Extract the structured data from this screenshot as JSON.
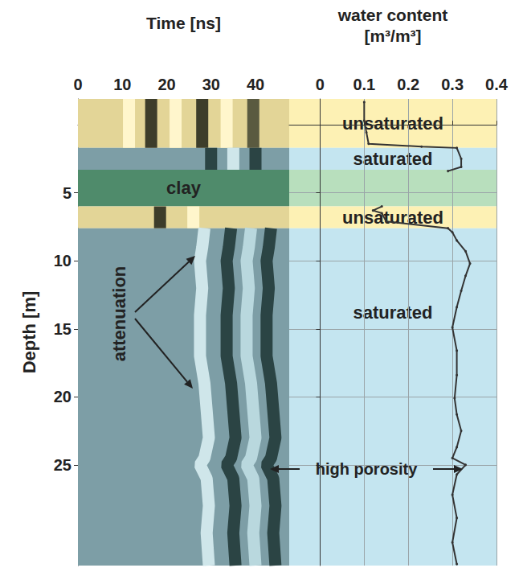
{
  "chart_data": [
    {
      "type": "line",
      "x_label": "Time [ns]",
      "y_label": "Depth [m]",
      "xlim": [
        0,
        47.6
      ],
      "xticks": [
        0,
        10,
        20,
        30,
        40
      ],
      "ylim": [
        -1.9,
        32.4
      ],
      "yticks": [
        5,
        10,
        15,
        20,
        25
      ],
      "grid": false,
      "zones": [
        {
          "from": -1.9,
          "to": 1.7,
          "color": "#e3d597"
        },
        {
          "from": 1.7,
          "to": 3.3,
          "color": "#7d9ea6"
        },
        {
          "from": 3.3,
          "to": 6.0,
          "color": "#4f8b6b",
          "label": "clay"
        },
        {
          "from": 6.0,
          "to": 7.6,
          "color": "#e3d597"
        },
        {
          "from": 7.6,
          "to": 32.4,
          "color": "#7d9ea6"
        }
      ],
      "series": [
        {
          "color": "#fff6cc",
          "x": [
            11.5,
            11.5
          ],
          "y": [
            -1.9,
            1.7
          ]
        },
        {
          "color": "#3d3d2a",
          "x": [
            16.5,
            16.5
          ],
          "y": [
            -1.9,
            1.7
          ]
        },
        {
          "color": "#fff6cc",
          "x": [
            22.0,
            22.0
          ],
          "y": [
            -1.9,
            1.7
          ]
        },
        {
          "color": "#3d3d2a",
          "x": [
            28.0,
            28.0
          ],
          "y": [
            -1.9,
            1.7
          ]
        },
        {
          "color": "#fff6cc",
          "x": [
            33.5,
            33.5
          ],
          "y": [
            -1.9,
            1.7
          ]
        },
        {
          "color": "#5a5a40",
          "x": [
            39.5,
            39.5
          ],
          "y": [
            -1.9,
            1.7
          ]
        },
        {
          "color": "#2b4444",
          "x": [
            30.0,
            30.0
          ],
          "y": [
            1.7,
            3.3
          ]
        },
        {
          "color": "#cfe6ea",
          "x": [
            35.0,
            35.0
          ],
          "y": [
            1.7,
            3.3
          ]
        },
        {
          "color": "#2b4444",
          "x": [
            40.0,
            40.0
          ],
          "y": [
            1.7,
            3.3
          ]
        },
        {
          "color": "#3d3d2a",
          "x": [
            18.5,
            18.5
          ],
          "y": [
            6.0,
            7.6
          ]
        },
        {
          "color": "#fff6cc",
          "x": [
            26.0,
            26.0
          ],
          "y": [
            6.0,
            7.6
          ]
        },
        {
          "color": "#cfe6ea",
          "x": [
            28.5,
            28,
            27.5,
            28,
            27.5,
            27.5,
            28.5,
            29,
            29.5,
            28.5,
            27.5,
            29,
            29.5,
            29,
            29.5
          ],
          "y": [
            7.6,
            9,
            10,
            12,
            14,
            17,
            19,
            21,
            23,
            24.5,
            25,
            26,
            28,
            30,
            32.4
          ]
        },
        {
          "color": "#b9d8de",
          "x": [
            39,
            38.5,
            38,
            38.5,
            38,
            38,
            39,
            39.5,
            40,
            39,
            38,
            39.5,
            40,
            39.5,
            40
          ],
          "y": [
            7.6,
            9,
            10,
            12,
            14,
            17,
            19,
            21,
            23,
            24.5,
            25,
            26,
            28,
            30,
            32.4
          ]
        },
        {
          "color": "#2b4444",
          "x": [
            34.5,
            34,
            33.5,
            34,
            33.5,
            33.5,
            34.5,
            35,
            35.5,
            34.5,
            33.5,
            35,
            35.5,
            35,
            35.5
          ],
          "y": [
            7.6,
            9,
            10,
            12,
            14,
            17,
            19,
            21,
            23,
            24.5,
            25,
            26,
            28,
            30,
            32.4
          ]
        },
        {
          "color": "#2b4444",
          "x": [
            43.5,
            43,
            42.5,
            43,
            42.5,
            42.5,
            43.5,
            44,
            44.5,
            43.5,
            42.5,
            44,
            44.5,
            44,
            44.5
          ],
          "y": [
            7.6,
            9,
            10,
            12,
            14,
            17,
            19,
            21,
            23,
            24.5,
            25,
            26,
            28,
            30,
            32.4
          ]
        }
      ],
      "annotations": [
        "attenuation",
        "high porosity"
      ]
    },
    {
      "type": "line",
      "x_label": "water content [m³/m³]",
      "xlim": [
        -0.07,
        0.4
      ],
      "xticks": [
        0,
        0.1,
        0.2,
        0.3,
        0.4
      ],
      "ylim": [
        -1.9,
        32.4
      ],
      "yticks": [
        5,
        10,
        15,
        20,
        25
      ],
      "grid": true,
      "tick_labels": "x",
      "zones": [
        {
          "from": -1.9,
          "to": 1.7,
          "color": "#fdf1b4",
          "label": "unsaturated"
        },
        {
          "from": 1.7,
          "to": 3.3,
          "color": "#c4e5f0",
          "label": "saturated"
        },
        {
          "from": 3.3,
          "to": 6.0,
          "color": "#b8dfbd"
        },
        {
          "from": 6.0,
          "to": 7.6,
          "color": "#fdf1b4",
          "label": "unsaturated"
        },
        {
          "from": 7.6,
          "to": 32.4,
          "color": "#c4e5f0",
          "label": "saturated"
        }
      ],
      "series": [
        {
          "color": "#333333",
          "marker": "circle",
          "x": [
            0.1,
            0.1,
            0.105,
            0.11,
            0.23,
            0.31,
            0.32,
            0.32,
            0.29,
            null,
            0.14,
            0.12,
            0.14,
            0.15,
            0.29,
            0.3,
            0.31,
            0.33,
            0.34,
            0.33,
            0.32,
            0.31,
            0.3,
            0.31,
            0.31,
            0.305,
            0.31,
            0.32,
            0.31,
            0.3,
            0.33,
            0.31,
            0.3,
            0.31,
            0.3,
            0.31
          ],
          "y": [
            -1.67,
            -0.3,
            0.55,
            1.4,
            1.6,
            1.7,
            2.5,
            3.1,
            3.4,
            null,
            6.0,
            6.3,
            6.5,
            7.1,
            7.6,
            7.9,
            8.5,
            9.3,
            10.2,
            11.1,
            12.2,
            13.4,
            14.9,
            16.6,
            18.4,
            20.1,
            21.3,
            22.5,
            23.7,
            24.5,
            25.0,
            25.7,
            27.2,
            28.9,
            30.7,
            32.3
          ]
        }
      ]
    }
  ]
}
